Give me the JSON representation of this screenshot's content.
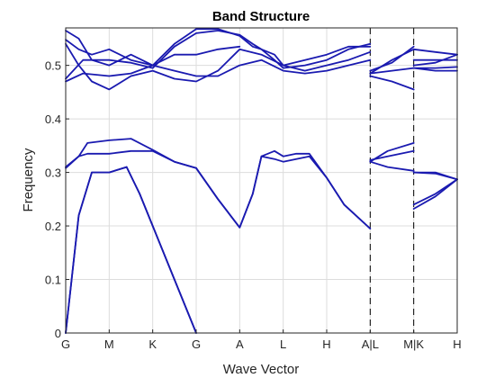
{
  "chart_data": {
    "type": "line",
    "title": "Band Structure",
    "xlabel": "Wave Vector",
    "ylabel": "Frequency",
    "xlim": [
      0,
      9
    ],
    "ylim": [
      0,
      0.57
    ],
    "grid": true,
    "x_ticks": [
      {
        "value": 0,
        "label": "G"
      },
      {
        "value": 1,
        "label": "M"
      },
      {
        "value": 2,
        "label": "K"
      },
      {
        "value": 3,
        "label": "G"
      },
      {
        "value": 4,
        "label": "A"
      },
      {
        "value": 5,
        "label": "L"
      },
      {
        "value": 6,
        "label": "H"
      },
      {
        "value": 7,
        "label": "A|L"
      },
      {
        "value": 8,
        "label": "M|K"
      },
      {
        "value": 9,
        "label": "H"
      }
    ],
    "y_ticks": [
      {
        "value": 0,
        "label": "0"
      },
      {
        "value": 0.1,
        "label": "0.1"
      },
      {
        "value": 0.2,
        "label": "0.2"
      },
      {
        "value": 0.3,
        "label": "0.3"
      },
      {
        "value": 0.4,
        "label": "0.4"
      },
      {
        "value": 0.5,
        "label": "0.5"
      }
    ],
    "dashed_dividers": [
      7,
      8
    ],
    "line_color": "#1a1ab0",
    "series": [
      {
        "x": [
          0,
          0.3,
          0.6,
          1,
          1.4,
          1.7,
          2,
          2.5,
          3
        ],
        "y": [
          0,
          0.22,
          0.3,
          0.3,
          0.31,
          0.26,
          0.2,
          0.1,
          0
        ]
      },
      {
        "x": [
          0,
          0.3,
          0.6,
          1,
          1.4,
          1.7,
          2,
          2.5,
          3
        ],
        "y": [
          0,
          0.22,
          0.3,
          0.3,
          0.31,
          0.26,
          0.2,
          0.1,
          0
        ]
      },
      {
        "x": [
          0,
          0.3,
          0.5,
          1,
          1.5,
          2,
          2.5,
          3
        ],
        "y": [
          0.31,
          0.33,
          0.335,
          0.335,
          0.34,
          0.34,
          0.32,
          0.308
        ]
      },
      {
        "x": [
          0,
          0.3,
          0.5,
          1,
          1.5,
          2,
          2.5,
          3
        ],
        "y": [
          0.308,
          0.33,
          0.355,
          0.36,
          0.363,
          0.342,
          0.32,
          0.308
        ]
      },
      {
        "x": [
          3,
          3.5,
          4,
          4.3,
          4.5,
          4.8,
          5,
          5.3,
          5.6,
          6,
          6.4,
          7
        ],
        "y": [
          0.308,
          0.25,
          0.197,
          0.26,
          0.33,
          0.325,
          0.32,
          0.325,
          0.33,
          0.29,
          0.24,
          0.195
        ]
      },
      {
        "x": [
          3,
          3.5,
          4,
          4.3,
          4.5,
          4.8,
          5,
          5.3,
          5.6,
          6,
          6.4,
          7
        ],
        "y": [
          0.308,
          0.25,
          0.197,
          0.26,
          0.33,
          0.34,
          0.33,
          0.335,
          0.335,
          0.29,
          0.24,
          0.195
        ]
      },
      {
        "x": [
          7,
          7.4,
          8
        ],
        "y": [
          0.32,
          0.34,
          0.355
        ]
      },
      {
        "x": [
          7,
          7.4,
          8
        ],
        "y": [
          0.323,
          0.33,
          0.34
        ]
      },
      {
        "x": [
          7,
          7.4,
          8
        ],
        "y": [
          0.32,
          0.31,
          0.303
        ]
      },
      {
        "x": [
          8,
          8.5,
          9
        ],
        "y": [
          0.24,
          0.26,
          0.287
        ]
      },
      {
        "x": [
          8,
          8.5,
          9
        ],
        "y": [
          0.232,
          0.255,
          0.287
        ]
      },
      {
        "x": [
          8,
          8.5,
          9
        ],
        "y": [
          0.3,
          0.3,
          0.287
        ]
      },
      {
        "x": [
          8,
          8.5,
          9
        ],
        "y": [
          0.3,
          0.298,
          0.287
        ]
      },
      {
        "x": [
          0,
          0.4,
          1,
          1.5,
          2,
          2.5,
          3,
          3.5,
          4,
          4.3,
          4.5,
          4.8,
          5,
          5.5,
          6,
          6.5,
          7
        ],
        "y": [
          0.47,
          0.485,
          0.48,
          0.485,
          0.5,
          0.54,
          0.568,
          0.568,
          0.555,
          0.535,
          0.53,
          0.52,
          0.5,
          0.51,
          0.52,
          0.535,
          0.535
        ]
      },
      {
        "x": [
          0,
          0.4,
          1,
          1.5,
          2,
          2.5,
          3,
          3.5,
          4,
          4.3,
          4.5,
          4.8,
          5,
          5.5,
          6,
          6.5,
          7
        ],
        "y": [
          0.475,
          0.51,
          0.51,
          0.505,
          0.495,
          0.535,
          0.56,
          0.565,
          0.557,
          0.54,
          0.53,
          0.51,
          0.495,
          0.5,
          0.51,
          0.53,
          0.54
        ]
      },
      {
        "x": [
          0,
          0.3,
          0.6,
          1,
          1.5,
          2,
          2.5,
          3,
          3.5,
          4,
          4.5,
          5,
          5.5,
          6,
          6.5,
          7
        ],
        "y": [
          0.565,
          0.55,
          0.51,
          0.5,
          0.52,
          0.5,
          0.49,
          0.48,
          0.48,
          0.5,
          0.51,
          0.49,
          0.485,
          0.49,
          0.5,
          0.51
        ]
      },
      {
        "x": [
          0,
          0.3,
          0.6,
          1,
          1.5,
          2,
          2.5,
          3,
          3.5,
          4,
          4.5,
          5,
          5.5,
          6,
          6.5,
          7
        ],
        "y": [
          0.54,
          0.5,
          0.47,
          0.455,
          0.48,
          0.49,
          0.475,
          0.47,
          0.49,
          0.53,
          0.52,
          0.5,
          0.49,
          0.5,
          0.51,
          0.525
        ]
      },
      {
        "x": [
          0,
          0.3,
          0.6,
          1,
          1.5,
          2,
          2.5,
          3,
          3.5,
          4
        ],
        "y": [
          0.548,
          0.53,
          0.52,
          0.53,
          0.51,
          0.5,
          0.52,
          0.52,
          0.53,
          0.535
        ]
      },
      {
        "x": [
          7,
          7.5,
          8
        ],
        "y": [
          0.49,
          0.505,
          0.535
        ]
      },
      {
        "x": [
          7,
          7.5,
          8
        ],
        "y": [
          0.485,
          0.51,
          0.53
        ]
      },
      {
        "x": [
          7,
          7.5,
          8
        ],
        "y": [
          0.48,
          0.47,
          0.455
        ]
      },
      {
        "x": [
          7,
          7.5,
          8
        ],
        "y": [
          0.485,
          0.49,
          0.495
        ]
      },
      {
        "x": [
          8,
          8.5,
          9
        ],
        "y": [
          0.53,
          0.525,
          0.52
        ]
      },
      {
        "x": [
          8,
          8.5,
          9
        ],
        "y": [
          0.51,
          0.51,
          0.51
        ]
      },
      {
        "x": [
          8,
          8.5,
          9
        ],
        "y": [
          0.5,
          0.505,
          0.52
        ]
      },
      {
        "x": [
          8,
          8.5,
          9
        ],
        "y": [
          0.495,
          0.495,
          0.497
        ]
      },
      {
        "x": [
          8,
          8.5,
          9
        ],
        "y": [
          0.495,
          0.49,
          0.49
        ]
      }
    ]
  }
}
